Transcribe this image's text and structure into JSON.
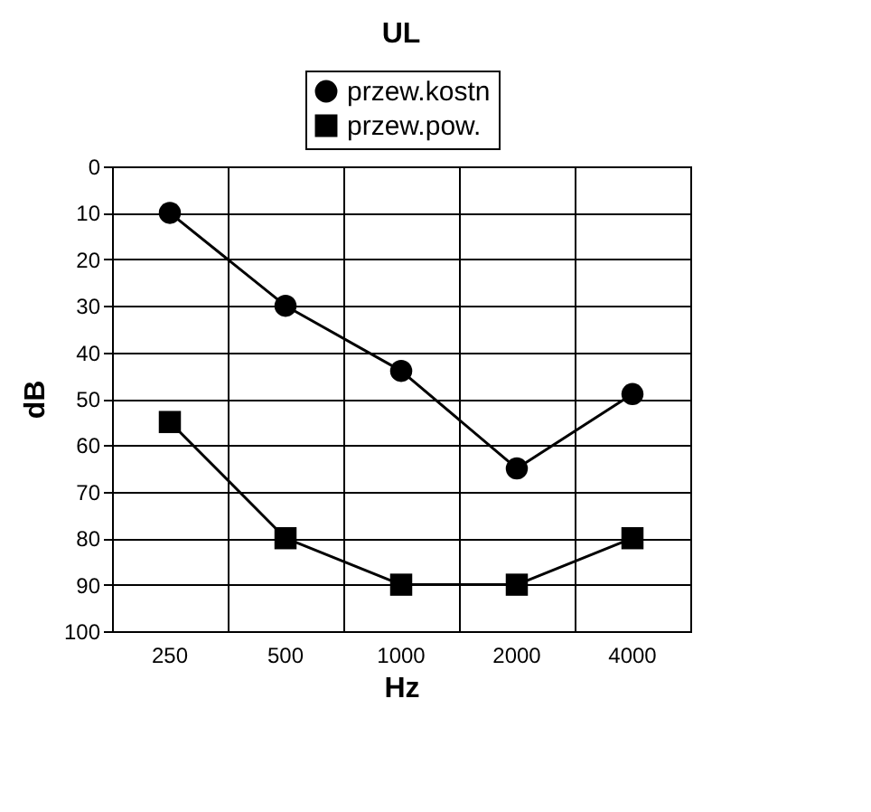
{
  "chart_data": {
    "type": "line",
    "title": "UL",
    "xlabel": "Hz",
    "ylabel": "dB",
    "categories": [
      "250",
      "500",
      "1000",
      "2000",
      "4000"
    ],
    "series": [
      {
        "name": "przew.kostn",
        "color": "#000000",
        "marker": "circle",
        "values": [
          10,
          30,
          44,
          65,
          49
        ]
      },
      {
        "name": "przew.pow.",
        "color": "#000000",
        "marker": "square",
        "values": [
          55,
          80,
          90,
          90,
          80
        ]
      }
    ],
    "ylim": [
      100,
      0
    ],
    "yticks": [
      0,
      10,
      20,
      30,
      40,
      50,
      60,
      70,
      80,
      90,
      100
    ],
    "grid": true,
    "legend": "top",
    "line_style": "solid"
  }
}
